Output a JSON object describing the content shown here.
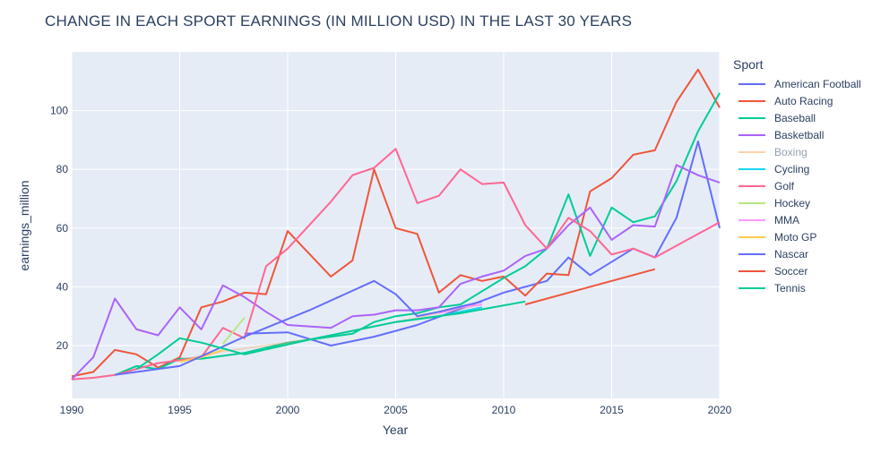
{
  "chart_data": {
    "type": "line",
    "title": "CHANGE IN EACH SPORT EARNINGS (IN MILLION USD) IN THE LAST 30 YEARS",
    "xlabel": "Year",
    "ylabel": "earnings_million",
    "xlim": [
      1990,
      2020
    ],
    "ylim": [
      2,
      120
    ],
    "xticks": [
      1990,
      1995,
      2000,
      2005,
      2010,
      2015,
      2020
    ],
    "yticks": [
      20,
      40,
      60,
      80,
      100
    ],
    "grid": true,
    "legend_title": "Sport",
    "legend_position": "right",
    "series": [
      {
        "name": "American Football",
        "color": "#636efa",
        "dimmed": false,
        "x": [
          1998,
          2000,
          2002,
          2004,
          2005,
          2006,
          2010,
          2012,
          2013,
          2014,
          2016,
          2017,
          2018,
          2019,
          2020
        ],
        "y": [
          24,
          24.5,
          20,
          23,
          25,
          27,
          38,
          42,
          50,
          44,
          53,
          50,
          63.5,
          89.5,
          60
        ]
      },
      {
        "name": "Auto Racing",
        "color": "#EF553B",
        "dimmed": false,
        "x": [
          1990,
          1991,
          1992,
          1993,
          1994,
          1995,
          1996,
          1997,
          1998,
          1999,
          2000,
          2002,
          2003,
          2004,
          2005,
          2006,
          2007,
          2008,
          2009,
          2010,
          2011,
          2012,
          2013,
          2014,
          2015,
          2016,
          2017,
          2018,
          2019,
          2020
        ],
        "y": [
          9.5,
          11,
          18.5,
          17,
          12.5,
          16,
          33,
          35,
          38,
          37.5,
          59,
          43.5,
          49,
          80,
          60,
          58,
          38,
          44,
          42,
          43.5,
          37,
          44.5,
          44,
          72.5,
          77,
          85,
          86.5,
          103,
          114,
          101
        ]
      },
      {
        "name": "Baseball",
        "color": "#00cc96",
        "dimmed": false,
        "x": [
          1992,
          1993,
          1994,
          1995,
          1996,
          1998,
          2000,
          2002,
          2003,
          2004,
          2005,
          2006,
          2007,
          2008,
          2009,
          2010,
          2011,
          2012,
          2013,
          2014,
          2015,
          2016,
          2017,
          2018,
          2019,
          2020
        ],
        "y": [
          10,
          13,
          12,
          15.5,
          15.5,
          17.5,
          21,
          23,
          24,
          28,
          30,
          31,
          33,
          34,
          38.5,
          43,
          47,
          53,
          71.5,
          50.5,
          67,
          62,
          64,
          76,
          93,
          106
        ]
      },
      {
        "name": "Basketball",
        "color": "#ab63fa",
        "dimmed": false,
        "x": [
          1990,
          1991,
          1992,
          1993,
          1994,
          1995,
          1996,
          1997,
          1998,
          1999,
          2000,
          2002,
          2003,
          2004,
          2005,
          2006,
          2007,
          2008,
          2009,
          2010,
          2011,
          2012,
          2013,
          2014,
          2015,
          2016,
          2017,
          2018,
          2019,
          2020
        ],
        "y": [
          8.5,
          16,
          36,
          25.5,
          23.5,
          33,
          25.5,
          40.5,
          36.5,
          31.5,
          27,
          26,
          30,
          30.5,
          32,
          32,
          33,
          41,
          43.5,
          45.5,
          50.5,
          53,
          61,
          67,
          56,
          61,
          60.5,
          81.5,
          78,
          75.5
        ]
      },
      {
        "name": "Boxing",
        "color": "#FFA15A",
        "dimmed": true,
        "x": [
          1995,
          1997,
          1999,
          2001,
          2003,
          2005,
          2007,
          2009
        ],
        "y": [
          15,
          18,
          20,
          22,
          25,
          28,
          31,
          34
        ]
      },
      {
        "name": "Cycling",
        "color": "#19d3f3",
        "dimmed": false,
        "x": [
          2005,
          2007,
          2009
        ],
        "y": [
          28,
          30,
          33
        ]
      },
      {
        "name": "Golf",
        "color": "#FF6692",
        "dimmed": false,
        "x": [
          1990,
          1991,
          1992,
          1993,
          1994,
          1995,
          1996,
          1997,
          1998,
          1999,
          2000,
          2002,
          2003,
          2004,
          2005,
          2006,
          2007,
          2008,
          2009,
          2010,
          2011,
          2012,
          2013,
          2014,
          2015,
          2016,
          2017,
          2020
        ],
        "y": [
          8.5,
          9,
          10,
          12,
          14,
          15,
          16,
          26,
          22.5,
          47,
          53,
          69,
          78,
          80.5,
          87,
          68.5,
          71,
          80,
          75,
          75.5,
          61,
          53,
          63.5,
          59,
          51,
          53,
          50,
          62
        ]
      },
      {
        "name": "Hockey",
        "color": "#B6E880",
        "dimmed": false,
        "x": [
          1997,
          1998
        ],
        "y": [
          20.5,
          29.5
        ]
      },
      {
        "name": "MMA",
        "color": "#FF97FF",
        "dimmed": false,
        "x": [
          2007,
          2008,
          2009
        ],
        "y": [
          31,
          33,
          34
        ]
      },
      {
        "name": "Moto GP",
        "color": "#FECB52",
        "dimmed": false,
        "x": [
          1995,
          1996,
          1997
        ],
        "y": [
          14.5,
          16,
          18.5
        ]
      },
      {
        "name": "Nascar",
        "color": "#636efa",
        "dimmed": false,
        "x": [
          1992,
          1995,
          1998,
          2001,
          2004,
          2005,
          2006,
          2007,
          2009
        ],
        "y": [
          10,
          13,
          23,
          32,
          42,
          37.5,
          30,
          31.5,
          35
        ]
      },
      {
        "name": "Soccer",
        "color": "#EF553B",
        "dimmed": false,
        "x": [
          2011,
          2017
        ],
        "y": [
          34,
          46
        ]
      },
      {
        "name": "Tennis",
        "color": "#00cc96",
        "dimmed": false,
        "x": [
          1993,
          1994,
          1995,
          1996,
          1998,
          2001,
          2005,
          2008,
          2011
        ],
        "y": [
          12,
          17,
          22.5,
          21,
          17,
          22,
          28,
          31,
          35
        ]
      }
    ]
  }
}
